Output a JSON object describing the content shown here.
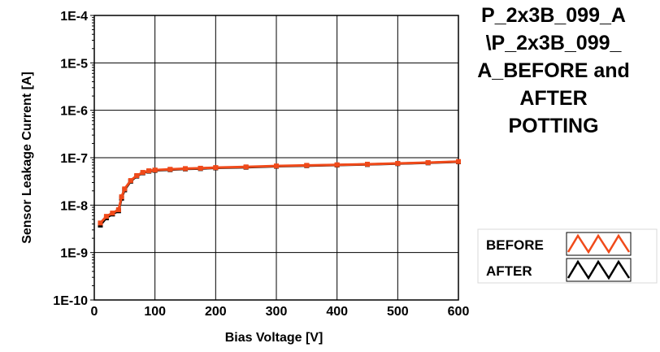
{
  "chart_data": {
    "type": "line",
    "title_lines": [
      "P_2x3B_099_A",
      "\\P_2x3B_099_",
      "A_BEFORE and",
      "AFTER",
      "POTTING"
    ],
    "xlabel": "Bias Voltage [V]",
    "ylabel": "Sensor Leakage Current [A]",
    "xlim": [
      0,
      600
    ],
    "ylim": [
      1e-10,
      0.0001
    ],
    "yscale": "log",
    "grid": true,
    "legend_position": "bottom-right",
    "x_ticks": [
      0,
      100,
      200,
      300,
      400,
      500,
      600
    ],
    "x_tick_labels": [
      "0",
      "100",
      "200",
      "300",
      "400",
      "500",
      "600"
    ],
    "y_ticks": [
      1e-10,
      1e-09,
      1e-08,
      1e-07,
      1e-06,
      1e-05,
      0.0001
    ],
    "y_tick_labels": [
      "1E-10",
      "1E-9",
      "1E-8",
      "1E-7",
      "1E-6",
      "1E-5",
      "1E-4"
    ],
    "series": [
      {
        "name": "BEFORE",
        "color": "#f04a1a",
        "x": [
          10,
          20,
          30,
          40,
          45,
          50,
          60,
          70,
          80,
          90,
          100,
          125,
          150,
          175,
          200,
          250,
          300,
          350,
          400,
          450,
          500,
          550,
          600
        ],
        "y": [
          4.2e-09,
          5.8e-09,
          6.8e-09,
          8e-09,
          1.5e-08,
          2.2e-08,
          3.3e-08,
          4.2e-08,
          4.9e-08,
          5.3e-08,
          5.5e-08,
          5.7e-08,
          5.9e-08,
          6e-08,
          6.2e-08,
          6.4e-08,
          6.7e-08,
          6.9e-08,
          7.1e-08,
          7.3e-08,
          7.6e-08,
          7.9e-08,
          8.3e-08
        ]
      },
      {
        "name": "AFTER",
        "color": "#000000",
        "x": [
          10,
          20,
          30,
          40,
          45,
          50,
          60,
          70,
          80,
          90,
          100,
          125,
          150,
          175,
          200,
          250,
          300,
          350,
          400,
          450,
          500,
          550,
          600
        ],
        "y": [
          3.8e-09,
          5.4e-09,
          6.5e-09,
          7.6e-09,
          1.4e-08,
          2.1e-08,
          3.2e-08,
          4.1e-08,
          4.8e-08,
          5.2e-08,
          5.4e-08,
          5.6e-08,
          5.8e-08,
          5.9e-08,
          6.1e-08,
          6.3e-08,
          6.6e-08,
          6.8e-08,
          7e-08,
          7.2e-08,
          7.5e-08,
          7.8e-08,
          8.2e-08
        ]
      }
    ]
  }
}
